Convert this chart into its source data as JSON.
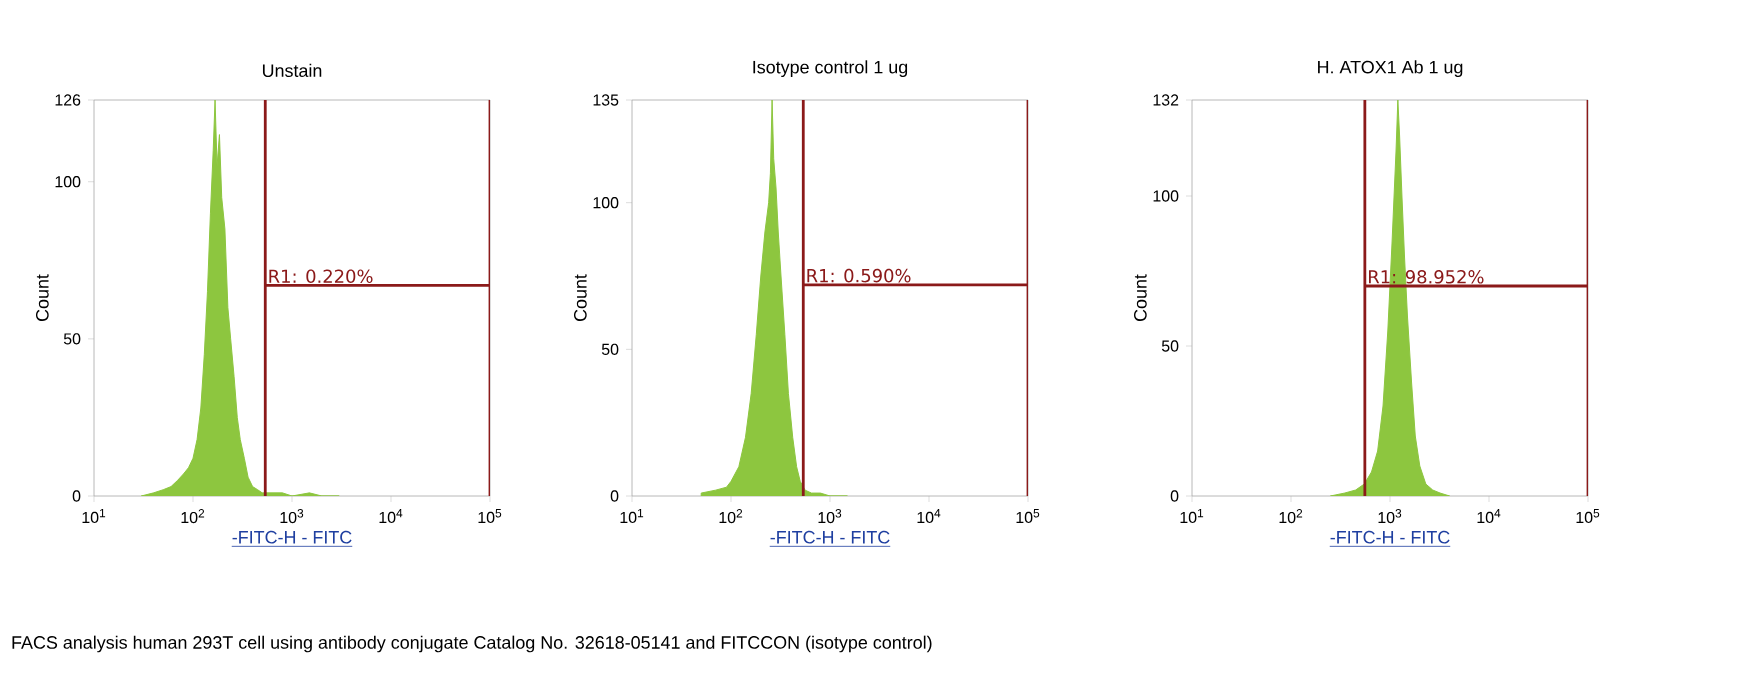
{
  "chart_data": [
    {
      "type": "area",
      "title": "Unstain",
      "xlabel": "-FITC-H - FITC",
      "ylabel": "Count",
      "log": "x",
      "xlim": [
        10,
        100000
      ],
      "ylim": [
        0,
        126
      ],
      "xticks": [
        {
          "value": 10,
          "label": "10$^{1}$"
        },
        {
          "value": 100,
          "label": "10$^{2}$"
        },
        {
          "value": 1000,
          "label": "10$^{3}$"
        },
        {
          "value": 10000,
          "label": "10$^{4}$"
        },
        {
          "value": 100000,
          "label": "10$^{5}$"
        }
      ],
      "yticks": [
        0,
        50,
        100,
        126
      ],
      "series": [
        {
          "color": "#8dc63f",
          "x": [
            30,
            40,
            50,
            60,
            70,
            80,
            90,
            100,
            110,
            120,
            130,
            140,
            150,
            160,
            167,
            175,
            185,
            195,
            210,
            225,
            240,
            260,
            280,
            300,
            330,
            360,
            400,
            450,
            500,
            600,
            800,
            1000,
            1500,
            2000,
            3000
          ],
          "values": [
            0,
            1,
            2,
            3,
            5,
            7,
            9,
            12,
            18,
            28,
            45,
            65,
            90,
            110,
            126,
            105,
            115,
            95,
            85,
            60,
            50,
            38,
            25,
            18,
            12,
            6,
            3,
            2,
            1,
            1,
            1,
            0,
            1,
            0,
            0
          ]
        },
        {
          "type": "line",
          "color": "#8b1a1a",
          "x": [
            537,
            537,
            537,
            100000,
            100000,
            100000
          ],
          "values": [
            0,
            126,
            67,
            67,
            126,
            0
          ]
        }
      ],
      "annotations": [
        "R1: 0.220%",
        "FACS analysis human 293T cell using antibody conjugate Catalog No. 32618-05141 and FITCCON (isotype control)"
      ]
    },
    {
      "type": "area",
      "title": "Isotype control 1 ug",
      "xlabel": "-FITC-H - FITC",
      "ylabel": "Count",
      "log": "x",
      "xlim": [
        10,
        100000
      ],
      "ylim": [
        0,
        135
      ],
      "xticks": [
        {
          "value": 10,
          "label": "10$^{1}$"
        },
        {
          "value": 100,
          "label": "10$^{2}$"
        },
        {
          "value": 1000,
          "label": "10$^{3}$"
        },
        {
          "value": 10000,
          "label": "10$^{4}$"
        },
        {
          "value": 100000,
          "label": "10$^{5}$"
        }
      ],
      "yticks": [
        0,
        50,
        100,
        135
      ],
      "series": [
        {
          "color": "#8dc63f",
          "x": [
            50,
            70,
            90,
            100,
            120,
            140,
            160,
            180,
            200,
            220,
            240,
            250,
            260,
            270,
            285,
            300,
            320,
            350,
            380,
            420,
            460,
            500,
            560,
            650,
            800,
            1000,
            1500
          ],
          "values": [
            1,
            2,
            3,
            5,
            10,
            20,
            35,
            55,
            75,
            90,
            100,
            110,
            135,
            115,
            105,
            90,
            75,
            55,
            35,
            20,
            10,
            5,
            2,
            1,
            1,
            0,
            0
          ]
        },
        {
          "type": "line",
          "color": "#8b1a1a",
          "x": [
            537,
            537,
            537,
            100000,
            100000,
            100000
          ],
          "values": [
            0,
            135,
            72,
            72,
            135,
            0
          ]
        }
      ],
      "annotations": [
        "R1: 0.590%"
      ]
    },
    {
      "type": "area",
      "title": "H. ATOX1 Ab 1 ug",
      "xlabel": "-FITC-H - FITC",
      "ylabel": "Count",
      "log": "x",
      "xlim": [
        10,
        100000
      ],
      "ylim": [
        0,
        132
      ],
      "xticks": [
        {
          "value": 10,
          "label": "10$^{1}$"
        },
        {
          "value": 100,
          "label": "10$^{2}$"
        },
        {
          "value": 1000,
          "label": "10$^{3}$"
        },
        {
          "value": 10000,
          "label": "10$^{4}$"
        },
        {
          "value": 100000,
          "label": "10$^{5}$"
        }
      ],
      "yticks": [
        0,
        50,
        100,
        132
      ],
      "series": [
        {
          "color": "#8dc63f",
          "x": [
            250,
            350,
            450,
            550,
            650,
            750,
            850,
            950,
            1050,
            1150,
            1200,
            1250,
            1320,
            1400,
            1500,
            1650,
            1800,
            2000,
            2300,
            2700,
            3200,
            4000
          ],
          "values": [
            0,
            1,
            2,
            4,
            8,
            15,
            30,
            55,
            85,
            115,
            132,
            120,
            100,
            80,
            60,
            38,
            20,
            10,
            4,
            2,
            1,
            0
          ]
        },
        {
          "type": "line",
          "color": "#8b1a1a",
          "x": [
            557,
            557,
            557,
            100000,
            100000,
            100000
          ],
          "values": [
            0,
            132,
            70,
            70,
            132,
            0
          ]
        }
      ],
      "annotations": [
        "R1: 98.952%"
      ]
    }
  ]
}
